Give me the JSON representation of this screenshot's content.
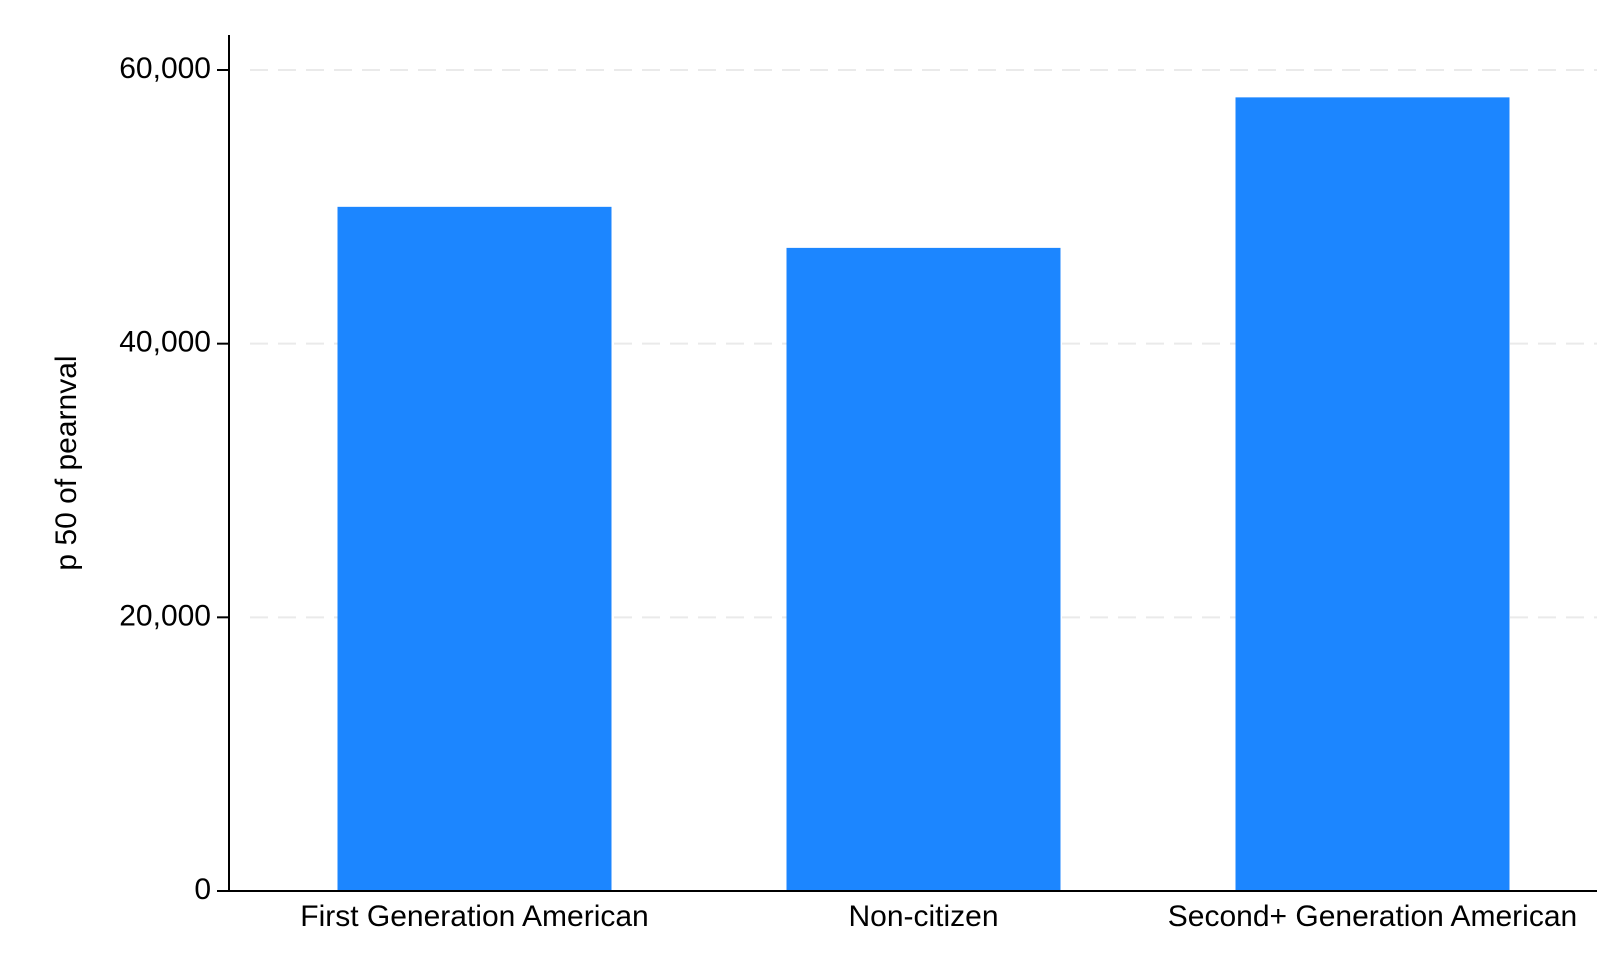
{
  "chart_data": {
    "type": "bar",
    "categories": [
      "First Generation American",
      "Non-citizen",
      "Second+ Generation American"
    ],
    "values": [
      50000,
      47000,
      58000
    ],
    "title": "",
    "xlabel": "",
    "ylabel": "p 50 of pearnval",
    "ylim": [
      0,
      60000
    ],
    "yticks": [
      0,
      20000,
      40000,
      60000
    ],
    "ytick_labels": [
      "0",
      "20,000",
      "40,000",
      "60,000"
    ],
    "grid": "horizontal dashed",
    "bar_color": "#1c86ff",
    "grid_color": "#eaeaea"
  }
}
